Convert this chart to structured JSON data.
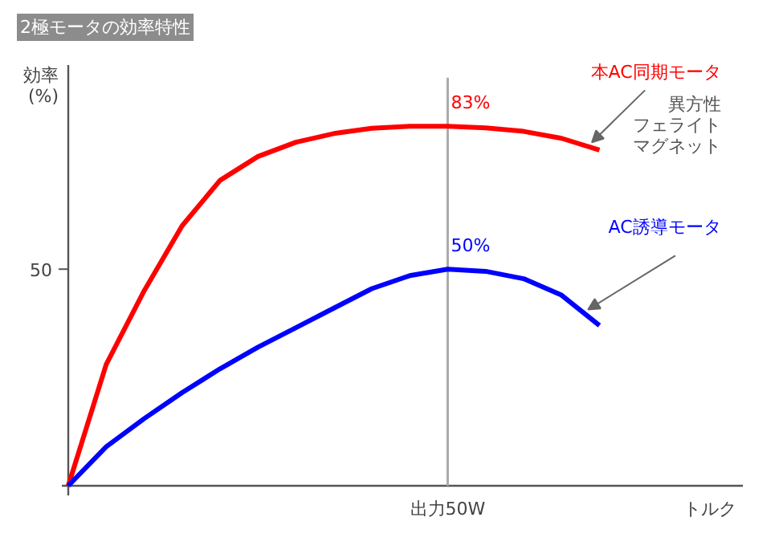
{
  "chart_data": {
    "type": "line",
    "title": "2極モータの効率特性",
    "ylabel": "効率\n(%)",
    "xlabel": "トルク",
    "categories": [
      null,
      null,
      null,
      null,
      null,
      null,
      null,
      null,
      null,
      null,
      null,
      null,
      null,
      null,
      null
    ],
    "series": [
      {
        "name": "本AC同期モータ",
        "color": "#ff0000",
        "values": [
          0,
          28,
          45,
          60,
          70.5,
          76,
          79.3,
          81.3,
          82.5,
          83,
          83,
          82.6,
          81.8,
          80.2,
          77.5
        ],
        "value_labels": [
          null,
          null,
          null,
          null,
          null,
          null,
          null,
          null,
          null,
          null,
          "83%",
          null,
          null,
          null,
          null
        ]
      },
      {
        "name": "AC誘導モータ",
        "color": "#0000ff",
        "values": [
          0,
          9,
          15.5,
          21.5,
          27,
          32,
          36.5,
          41,
          45.5,
          48.5,
          50,
          49.5,
          47.8,
          44,
          37
        ],
        "value_labels": [
          null,
          null,
          null,
          null,
          null,
          null,
          null,
          null,
          null,
          null,
          "50%",
          null,
          null,
          null,
          null
        ]
      }
    ],
    "annotations": [
      "50",
      "出力50W",
      "異方性",
      "フェライト",
      "マグネット"
    ],
    "grid": false,
    "marker": "none",
    "line_style": "solid"
  }
}
